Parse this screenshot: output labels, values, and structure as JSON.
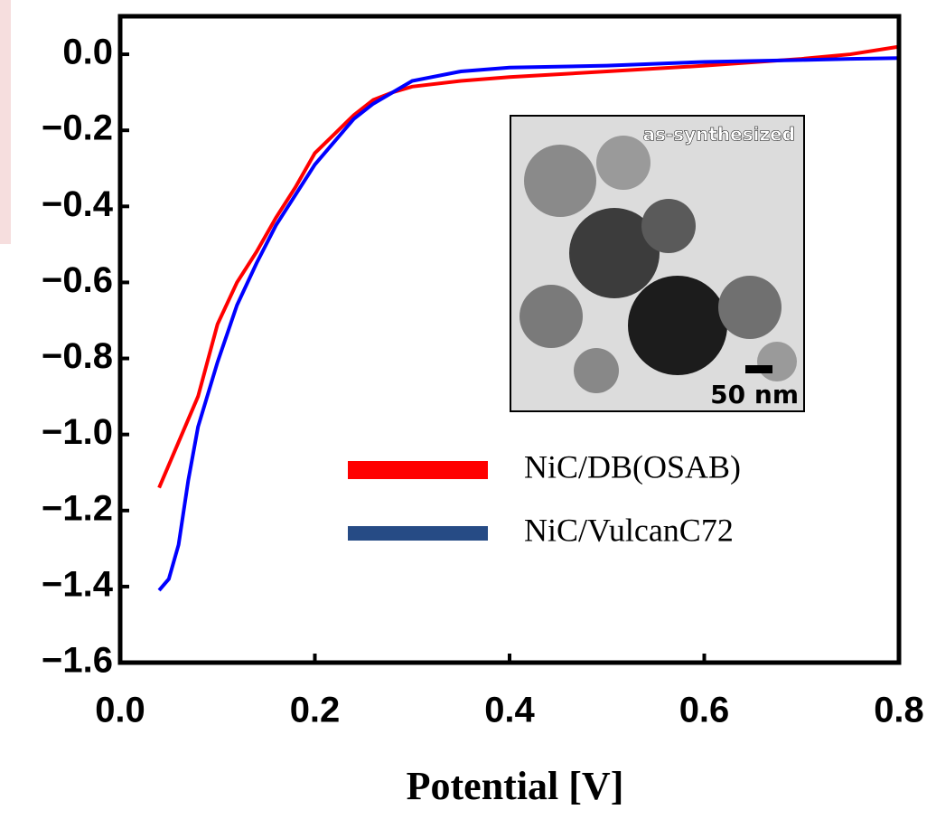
{
  "chart_data": {
    "type": "line",
    "x_label": "Potential [V]",
    "x": [
      0.04,
      0.05,
      0.06,
      0.07,
      0.08,
      0.1,
      0.12,
      0.14,
      0.16,
      0.18,
      0.2,
      0.22,
      0.24,
      0.26,
      0.28,
      0.3,
      0.35,
      0.4,
      0.5,
      0.6,
      0.7,
      0.75,
      0.8
    ],
    "series": [
      {
        "name": "NiC/DB(OSAB)",
        "color": "#ff0000",
        "legend_color": "#ff0000",
        "values": [
          -1.14,
          -1.08,
          -1.02,
          -0.96,
          -0.9,
          -0.71,
          -0.6,
          -0.52,
          -0.43,
          -0.35,
          -0.26,
          -0.21,
          -0.16,
          -0.12,
          -0.1,
          -0.085,
          -0.07,
          -0.06,
          -0.045,
          -0.03,
          -0.012,
          0.0,
          0.02
        ]
      },
      {
        "name": "NiC/VulcanC72",
        "color": "#0000ff",
        "legend_color": "#264b85",
        "values": [
          -1.41,
          -1.38,
          -1.29,
          -1.12,
          -0.98,
          -0.81,
          -0.66,
          -0.55,
          -0.45,
          -0.37,
          -0.29,
          -0.23,
          -0.17,
          -0.13,
          -0.1,
          -0.07,
          -0.045,
          -0.035,
          -0.03,
          -0.02,
          -0.015,
          -0.012,
          -0.01
        ]
      }
    ],
    "xlim": [
      0,
      0.8
    ],
    "ylim": [
      -1.6,
      0.1
    ],
    "xticks": [
      {
        "value": 0,
        "label": "0.0"
      },
      {
        "value": 0.2,
        "label": "0.2"
      },
      {
        "value": 0.4,
        "label": "0.4"
      },
      {
        "value": 0.6,
        "label": "0.6"
      },
      {
        "value": 0.8,
        "label": "0.8"
      }
    ],
    "yticks": [
      {
        "value": 0,
        "label": "0.0"
      },
      {
        "value": -0.2,
        "label": "−0.2"
      },
      {
        "value": -0.4,
        "label": "−0.4"
      },
      {
        "value": -0.6,
        "label": "−0.6"
      },
      {
        "value": -0.8,
        "label": "−0.8"
      },
      {
        "value": -1.0,
        "label": "−1.0"
      },
      {
        "value": -1.2,
        "label": "−1.2"
      },
      {
        "value": -1.4,
        "label": "−1.4"
      },
      {
        "value": -1.6,
        "label": "−1.6"
      }
    ],
    "inset": {
      "label": "as-synthesized",
      "scale_bar": "50 nm"
    }
  }
}
